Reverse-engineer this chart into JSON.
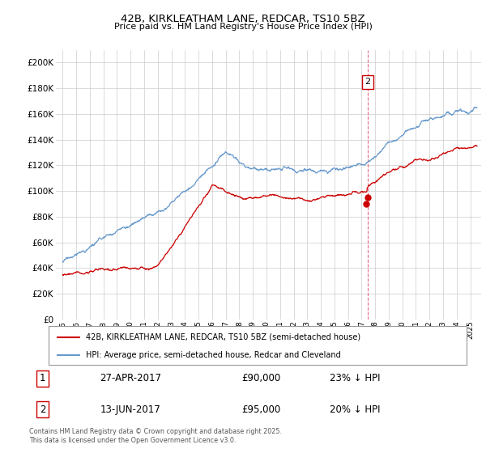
{
  "title": "42B, KIRKLEATHAM LANE, REDCAR, TS10 5BZ",
  "subtitle": "Price paid vs. HM Land Registry's House Price Index (HPI)",
  "ylim": [
    0,
    210000
  ],
  "yticks": [
    0,
    20000,
    40000,
    60000,
    80000,
    100000,
    120000,
    140000,
    160000,
    180000,
    200000
  ],
  "xlim_start": 1994.5,
  "xlim_end": 2025.8,
  "transaction1": {
    "date_num": 2017.32,
    "price": 90000,
    "label": "1",
    "pct": "23% ↓ HPI",
    "date_str": "27-APR-2017",
    "price_str": "£90,000"
  },
  "transaction2": {
    "date_num": 2017.46,
    "price": 95000,
    "label": "2",
    "pct": "20% ↓ HPI",
    "date_str": "13-JUN-2017",
    "price_str": "£95,000"
  },
  "legend_line1": "42B, KIRKLEATHAM LANE, REDCAR, TS10 5BZ (semi-detached house)",
  "legend_line2": "HPI: Average price, semi-detached house, Redcar and Cleveland",
  "footer": "Contains HM Land Registry data © Crown copyright and database right 2025.\nThis data is licensed under the Open Government Licence v3.0.",
  "price_color": "#cc0000",
  "hpi_color": "#6699cc",
  "vline_color": "#dd4466",
  "background": "#ffffff",
  "grid_color": "#cccccc"
}
